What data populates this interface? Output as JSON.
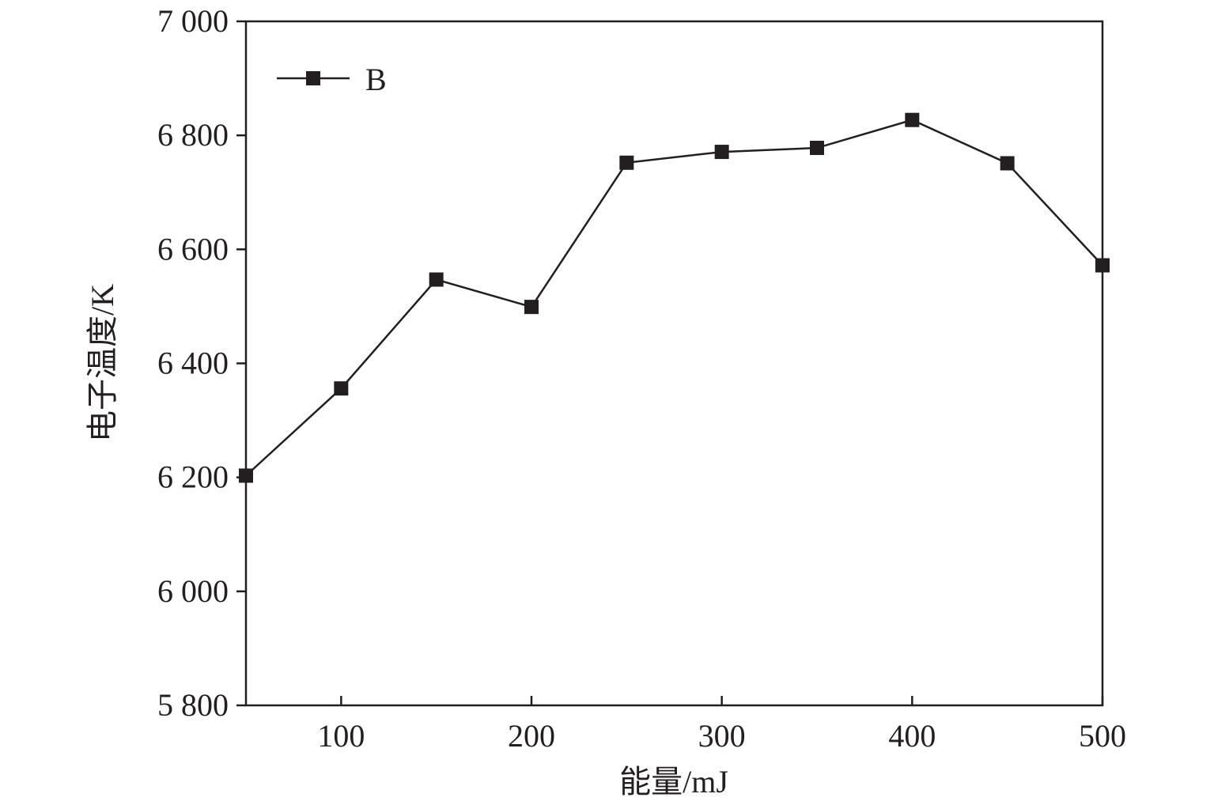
{
  "chart_data": {
    "type": "line",
    "title": "",
    "xlabel": "能量/mJ",
    "ylabel": "电子温度/K",
    "xlim": [
      50,
      500
    ],
    "ylim": [
      5800,
      7000
    ],
    "x_ticks": [
      100,
      200,
      300,
      400,
      500
    ],
    "x_tick_labels": [
      "100",
      "200",
      "300",
      "400",
      "500"
    ],
    "y_ticks": [
      5800,
      6000,
      6200,
      6400,
      6600,
      6800,
      7000
    ],
    "y_tick_labels": [
      "5 800",
      "6 000",
      "6 200",
      "6 400",
      "6 600",
      "6 800",
      "7 000"
    ],
    "grid": false,
    "legend_position": "top-left",
    "series": [
      {
        "name": "B",
        "color": "#231f20",
        "marker": "square",
        "x": [
          50,
          100,
          150,
          200,
          250,
          300,
          350,
          400,
          450,
          500
        ],
        "y": [
          6203,
          6356,
          6547,
          6499,
          6752,
          6771,
          6778,
          6827,
          6751,
          6572
        ]
      }
    ]
  }
}
